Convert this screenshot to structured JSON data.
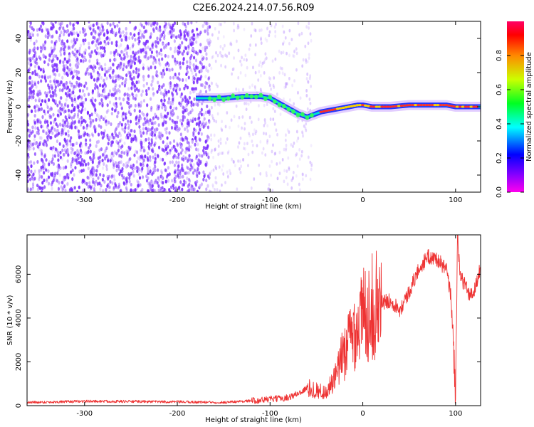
{
  "figure_title": "C2E6.2024.214.07.56.R09",
  "colors": {
    "snr_line": "#ee3333",
    "spectrogram_scatter": "#7a2cff",
    "axis": "#000000"
  },
  "colorbar": {
    "label": "Normalized spectral amplitude",
    "range": [
      0.0,
      1.0
    ],
    "ticks": [
      0.0,
      0.2,
      0.4,
      0.6,
      0.8
    ],
    "tick_labels": [
      "0.0",
      "0.2",
      "0.4",
      "0.6",
      "0.8"
    ],
    "colormap": "gist_rainbow (magenta-blue-cyan-green-yellow-red)"
  },
  "chart_data": [
    {
      "type": "heatmap",
      "title": "",
      "xlabel": "Height of straight line (km)",
      "ylabel": "Frequency (Hz)",
      "xlim": [
        -362,
        127
      ],
      "ylim": [
        -50,
        50
      ],
      "x_ticks": [
        -300,
        -200,
        -100,
        0,
        100
      ],
      "x_tick_labels": [
        "-300",
        "-200",
        "-100",
        "0",
        "100"
      ],
      "y_ticks": [
        -40,
        -20,
        0,
        20,
        40
      ],
      "y_tick_labels": [
        "-40",
        "-20",
        "0",
        "20",
        "40"
      ],
      "noise_region_x": [
        -362,
        -55
      ],
      "dense_noise_until_x": -165,
      "tone_track": {
        "x": [
          -180,
          -165,
          -150,
          -130,
          -110,
          -100,
          -90,
          -80,
          -70,
          -60,
          -55,
          -45,
          -35,
          -25,
          -15,
          -5,
          0,
          10,
          30,
          50,
          70,
          90,
          100,
          110,
          127
        ],
        "frequency_hz": [
          5,
          5,
          5,
          6,
          6,
          5,
          2,
          -1,
          -4,
          -6,
          -5,
          -3,
          -2,
          -1,
          0,
          1,
          1,
          0,
          0,
          1,
          1,
          1,
          0,
          0,
          0
        ]
      }
    },
    {
      "type": "line",
      "title": "",
      "xlabel": "Height of straight line (km)",
      "ylabel": "SNR (10 * v/v)",
      "xlim": [
        -362,
        127
      ],
      "ylim": [
        0,
        7800
      ],
      "x_ticks": [
        -300,
        -200,
        -100,
        0,
        100
      ],
      "x_tick_labels": [
        "-300",
        "-200",
        "-100",
        "0",
        "100"
      ],
      "y_ticks": [
        0,
        2000,
        4000,
        6000
      ],
      "y_tick_labels": [
        "0",
        "2000",
        "4000",
        "6000"
      ],
      "series": [
        {
          "name": "SNR",
          "x": [
            -362,
            -340,
            -300,
            -250,
            -200,
            -150,
            -130,
            -110,
            -100,
            -90,
            -80,
            -70,
            -60,
            -50,
            -40,
            -30,
            -20,
            -10,
            0,
            10,
            20,
            30,
            40,
            50,
            60,
            70,
            80,
            90,
            95,
            98,
            100,
            102,
            105,
            110,
            115,
            120,
            127
          ],
          "y": [
            150,
            160,
            200,
            190,
            170,
            150,
            200,
            250,
            300,
            320,
            380,
            550,
            800,
            700,
            600,
            1200,
            2500,
            3400,
            4100,
            4500,
            4700,
            4800,
            4400,
            5200,
            6200,
            6800,
            6700,
            6200,
            5000,
            2500,
            500,
            7800,
            5800,
            5600,
            5000,
            5200,
            6300
          ]
        }
      ]
    }
  ]
}
